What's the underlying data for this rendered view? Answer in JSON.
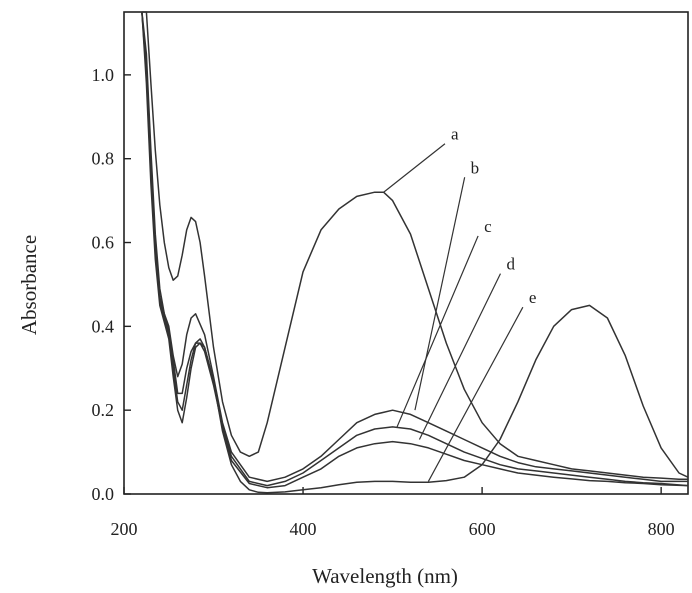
{
  "chart_data": {
    "type": "line",
    "xlabel": "Wavelength (nm)",
    "ylabel": "Absorbance",
    "xlim": [
      200,
      830
    ],
    "ylim": [
      0,
      1.15
    ],
    "xticks": [
      200,
      400,
      600,
      800
    ],
    "xtick_labels": [
      "200",
      "400",
      "600",
      "800"
    ],
    "yticks": [
      0,
      0.2,
      0.4,
      0.6,
      0.8,
      1.0
    ],
    "ytick_labels": [
      "0.0",
      "0.2",
      "0.4",
      "0.6",
      "0.8",
      "1.0"
    ],
    "grid": false,
    "legend": "none",
    "series": [
      {
        "name": "a",
        "label_anchor": [
          490,
          0.72
        ],
        "label_text_pos": [
          563,
          0.85
        ],
        "x": [
          220,
          225,
          230,
          235,
          240,
          245,
          250,
          255,
          260,
          265,
          270,
          275,
          280,
          285,
          290,
          300,
          310,
          320,
          330,
          340,
          350,
          360,
          380,
          400,
          420,
          440,
          460,
          480,
          490,
          500,
          520,
          540,
          560,
          580,
          600,
          620,
          640,
          660,
          680,
          700,
          720,
          740,
          760,
          780,
          800,
          820,
          830
        ],
        "y": [
          1.3,
          1.15,
          0.98,
          0.82,
          0.69,
          0.6,
          0.54,
          0.51,
          0.52,
          0.57,
          0.63,
          0.66,
          0.65,
          0.6,
          0.52,
          0.35,
          0.22,
          0.14,
          0.1,
          0.09,
          0.1,
          0.17,
          0.35,
          0.53,
          0.63,
          0.68,
          0.71,
          0.72,
          0.72,
          0.7,
          0.62,
          0.49,
          0.36,
          0.25,
          0.17,
          0.12,
          0.09,
          0.08,
          0.07,
          0.06,
          0.055,
          0.05,
          0.045,
          0.04,
          0.038,
          0.035,
          0.035
        ]
      },
      {
        "name": "b",
        "label_anchor": [
          525,
          0.2
        ],
        "label_text_pos": [
          585,
          0.77
        ],
        "x": [
          220,
          225,
          230,
          235,
          240,
          245,
          250,
          255,
          260,
          265,
          270,
          275,
          280,
          290,
          300,
          310,
          320,
          340,
          360,
          380,
          400,
          420,
          440,
          460,
          480,
          500,
          520,
          540,
          560,
          580,
          600,
          620,
          640,
          660,
          680,
          700,
          720,
          740,
          760,
          780,
          800,
          830
        ],
        "y": [
          1.25,
          1.05,
          0.82,
          0.62,
          0.49,
          0.43,
          0.4,
          0.33,
          0.28,
          0.31,
          0.38,
          0.42,
          0.43,
          0.38,
          0.28,
          0.17,
          0.1,
          0.04,
          0.03,
          0.04,
          0.06,
          0.09,
          0.13,
          0.17,
          0.19,
          0.2,
          0.19,
          0.17,
          0.15,
          0.13,
          0.11,
          0.09,
          0.075,
          0.065,
          0.06,
          0.055,
          0.05,
          0.045,
          0.04,
          0.035,
          0.03,
          0.03
        ]
      },
      {
        "name": "c",
        "label_anchor": [
          505,
          0.16
        ],
        "label_text_pos": [
          600,
          0.63
        ],
        "x": [
          220,
          225,
          230,
          235,
          240,
          245,
          250,
          255,
          260,
          265,
          270,
          275,
          280,
          285,
          290,
          300,
          310,
          320,
          340,
          360,
          380,
          400,
          420,
          440,
          460,
          480,
          500,
          520,
          540,
          560,
          580,
          600,
          620,
          640,
          660,
          680,
          700,
          720,
          740,
          760,
          780,
          800,
          830
        ],
        "y": [
          1.2,
          1.02,
          0.78,
          0.6,
          0.47,
          0.43,
          0.39,
          0.32,
          0.24,
          0.24,
          0.3,
          0.34,
          0.36,
          0.36,
          0.34,
          0.26,
          0.16,
          0.09,
          0.03,
          0.02,
          0.03,
          0.05,
          0.08,
          0.11,
          0.14,
          0.155,
          0.16,
          0.155,
          0.14,
          0.12,
          0.1,
          0.085,
          0.07,
          0.06,
          0.055,
          0.05,
          0.045,
          0.04,
          0.035,
          0.03,
          0.027,
          0.025,
          0.02
        ]
      },
      {
        "name": "d",
        "label_anchor": [
          530,
          0.13
        ],
        "label_text_pos": [
          625,
          0.54
        ],
        "x": [
          220,
          225,
          230,
          235,
          240,
          245,
          250,
          255,
          260,
          265,
          270,
          275,
          280,
          285,
          290,
          300,
          310,
          320,
          340,
          360,
          380,
          400,
          420,
          440,
          460,
          480,
          500,
          520,
          540,
          560,
          580,
          600,
          620,
          640,
          660,
          680,
          700,
          720,
          740,
          760,
          780,
          800,
          830
        ],
        "y": [
          1.2,
          1.0,
          0.76,
          0.58,
          0.46,
          0.42,
          0.38,
          0.3,
          0.22,
          0.2,
          0.26,
          0.32,
          0.36,
          0.37,
          0.35,
          0.27,
          0.16,
          0.08,
          0.025,
          0.015,
          0.02,
          0.04,
          0.06,
          0.09,
          0.11,
          0.12,
          0.125,
          0.12,
          0.11,
          0.095,
          0.08,
          0.07,
          0.06,
          0.05,
          0.045,
          0.04,
          0.036,
          0.032,
          0.03,
          0.027,
          0.025,
          0.022,
          0.02
        ]
      },
      {
        "name": "e",
        "label_anchor": [
          540,
          0.03
        ],
        "label_text_pos": [
          650,
          0.46
        ],
        "x": [
          220,
          225,
          230,
          235,
          240,
          245,
          250,
          255,
          260,
          265,
          270,
          275,
          280,
          285,
          290,
          300,
          310,
          320,
          330,
          340,
          350,
          360,
          380,
          400,
          420,
          440,
          460,
          480,
          500,
          520,
          540,
          560,
          580,
          600,
          620,
          640,
          660,
          680,
          700,
          720,
          740,
          760,
          780,
          800,
          820,
          830
        ],
        "y": [
          1.15,
          0.98,
          0.74,
          0.56,
          0.45,
          0.41,
          0.37,
          0.28,
          0.2,
          0.17,
          0.23,
          0.3,
          0.35,
          0.36,
          0.35,
          0.27,
          0.15,
          0.07,
          0.03,
          0.01,
          0.004,
          0.003,
          0.005,
          0.01,
          0.015,
          0.022,
          0.028,
          0.03,
          0.03,
          0.028,
          0.028,
          0.032,
          0.04,
          0.07,
          0.13,
          0.22,
          0.32,
          0.4,
          0.44,
          0.45,
          0.42,
          0.33,
          0.21,
          0.11,
          0.05,
          0.04
        ]
      }
    ]
  }
}
